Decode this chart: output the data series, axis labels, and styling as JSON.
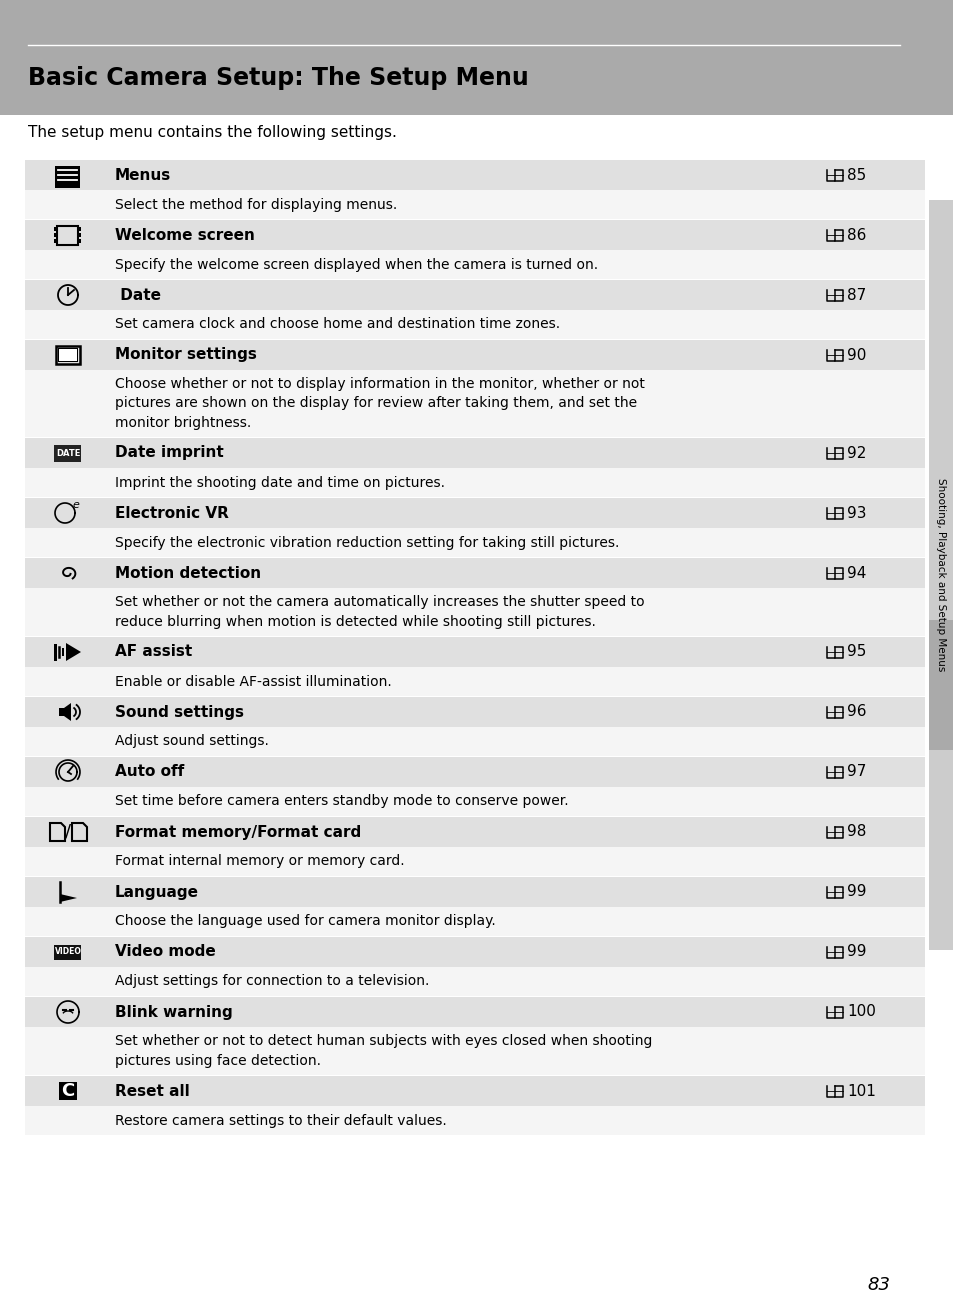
{
  "title": "Basic Camera Setup: The Setup Menu",
  "subtitle": "The setup menu contains the following settings.",
  "page_number": "83",
  "sidebar_text": "Shooting, Playback and Setup Menus",
  "header_bg": "#aaaaaa",
  "row_title_bg": "#e0e0e0",
  "row_desc_bg": "#f5f5f5",
  "rows": [
    {
      "icon": "MENU",
      "title": "Menus",
      "page_ref": "85",
      "description": "Select the method for displaying menus.",
      "desc_lines": 1
    },
    {
      "icon": "WelcomeScreen",
      "title": "Welcome screen",
      "page_ref": "86",
      "description": "Specify the welcome screen displayed when the camera is turned on.",
      "desc_lines": 1
    },
    {
      "icon": "Date",
      "title": " Date",
      "page_ref": "87",
      "description": "Set camera clock and choose home and destination time zones.",
      "desc_lines": 1
    },
    {
      "icon": "Monitor",
      "title": "Monitor settings",
      "page_ref": "90",
      "description": "Choose whether or not to display information in the monitor, whether or not\npictures are shown on the display for review after taking them, and set the\nmonitor brightness.",
      "desc_lines": 3
    },
    {
      "icon": "DATE",
      "title": "Date imprint",
      "page_ref": "92",
      "description": "Imprint the shooting date and time on pictures.",
      "desc_lines": 1
    },
    {
      "icon": "ElectronicVR",
      "title": "Electronic VR",
      "page_ref": "93",
      "description": "Specify the electronic vibration reduction setting for taking still pictures.",
      "desc_lines": 1
    },
    {
      "icon": "MotionDetect",
      "title": "Motion detection",
      "page_ref": "94",
      "description": "Set whether or not the camera automatically increases the shutter speed to\nreduce blurring when motion is detected while shooting still pictures.",
      "desc_lines": 2
    },
    {
      "icon": "AFAssist",
      "title": "AF assist",
      "page_ref": "95",
      "description": "Enable or disable AF-assist illumination.",
      "desc_lines": 1
    },
    {
      "icon": "Sound",
      "title": "Sound settings",
      "page_ref": "96",
      "description": "Adjust sound settings.",
      "desc_lines": 1
    },
    {
      "icon": "AutoOff",
      "title": "Auto off",
      "page_ref": "97",
      "description": "Set time before camera enters standby mode to conserve power.",
      "desc_lines": 1
    },
    {
      "icon": "Format",
      "title": "Format memory/Format card",
      "page_ref": "98",
      "description": "Format internal memory or memory card.",
      "desc_lines": 1
    },
    {
      "icon": "Language",
      "title": "Language",
      "page_ref": "99",
      "description": "Choose the language used for camera monitor display.",
      "desc_lines": 1
    },
    {
      "icon": "Video",
      "title": "Video mode",
      "page_ref": "99",
      "description": "Adjust settings for connection to a television.",
      "desc_lines": 1
    },
    {
      "icon": "Blink",
      "title": "Blink warning",
      "page_ref": "100",
      "description": "Set whether or not to detect human subjects with eyes closed when shooting\npictures using face detection.",
      "desc_lines": 2
    },
    {
      "icon": "Reset",
      "title": "Reset all",
      "page_ref": "101",
      "description": "Restore camera settings to their default values.",
      "desc_lines": 1
    }
  ]
}
